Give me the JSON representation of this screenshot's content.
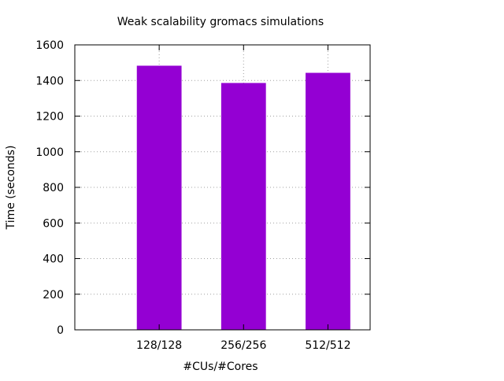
{
  "chart_data": {
    "type": "bar",
    "title": "Weak scalability gromacs simulations",
    "xlabel": "#CUs/#Cores",
    "ylabel": "Time (seconds)",
    "categories": [
      "128/128",
      "256/256",
      "512/512"
    ],
    "values": [
      1483,
      1386,
      1443
    ],
    "ylim": [
      0,
      1600
    ],
    "yticks": [
      0,
      200,
      400,
      600,
      800,
      1000,
      1200,
      1400,
      1600
    ],
    "grid": true,
    "legend": "none",
    "bar_color": "#9400d3"
  }
}
